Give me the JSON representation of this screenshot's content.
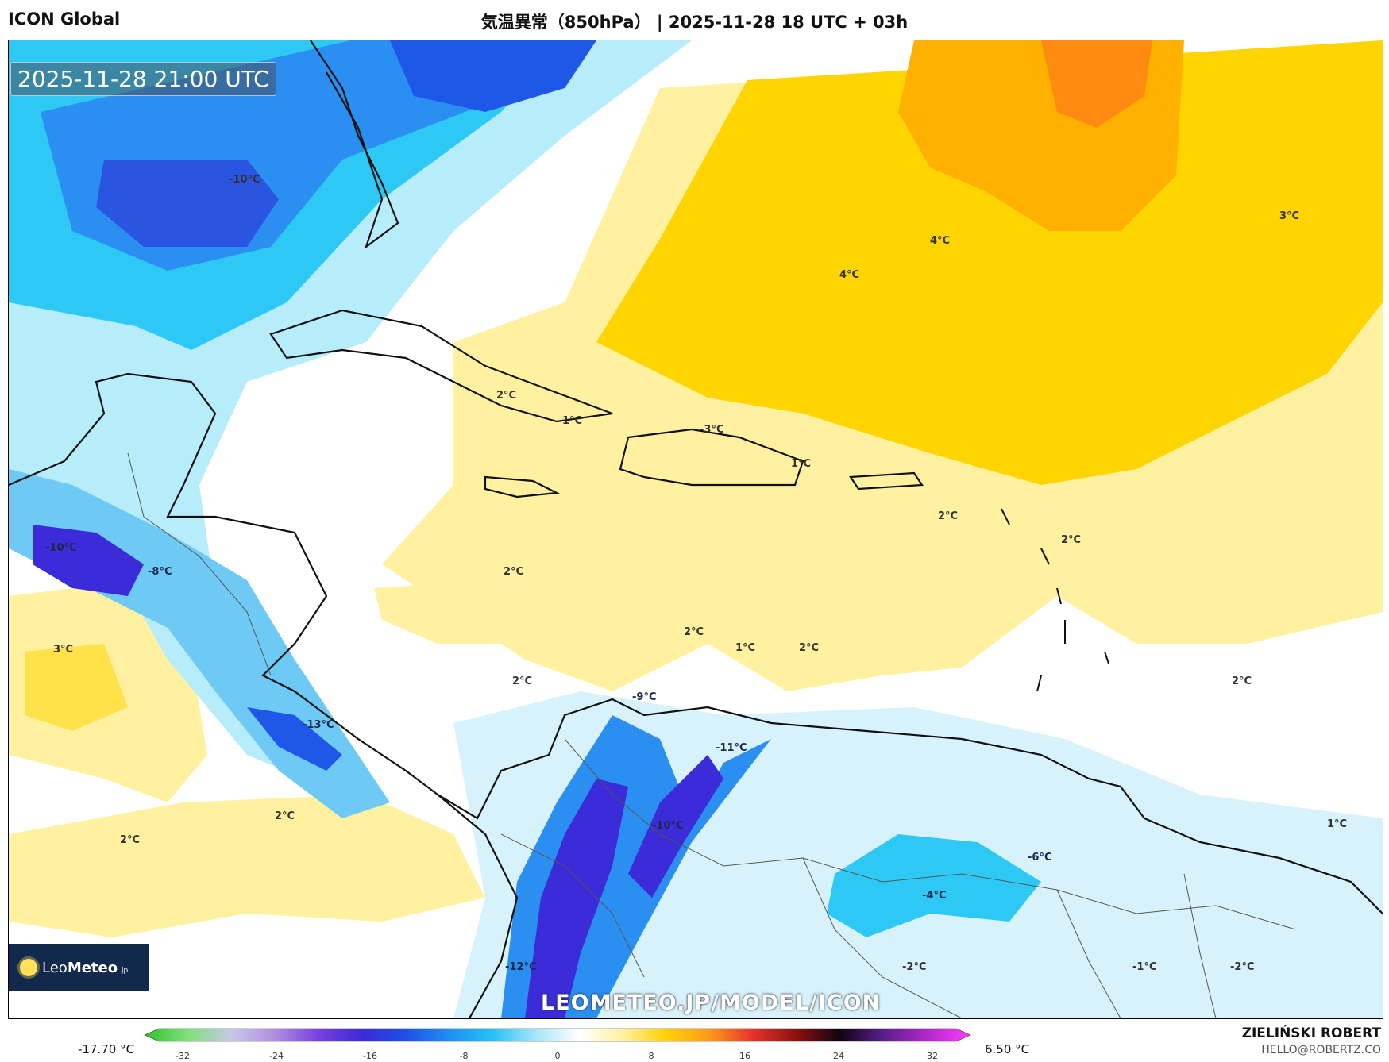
{
  "header": {
    "model": "ICON Global",
    "title": "気温異常（850hPa） | 2025-11-28 18 UTC + 03h"
  },
  "map": {
    "valid_time": "2025-11-28 21:00 UTC",
    "watermark": "LEOMETEO.JP/MODEL/ICON",
    "logo": {
      "text_light": "Leo",
      "text_bold": "Meteo",
      "text_small": ".jp"
    },
    "contour_labels": [
      "-10°C",
      "4°C",
      "4°C",
      "3°C",
      "2°C",
      "1°C",
      "-3°C",
      "1°C",
      "2°C",
      "2°C",
      "-10°C",
      "-8°C",
      "2°C",
      "3°C",
      "2°C",
      "1°C",
      "2°C",
      "2°C",
      "2°C",
      "-9°C",
      "-13°C",
      "-11°C",
      "-10°C",
      "2°C",
      "2°C",
      "-6°C",
      "-4°C",
      "1°C",
      "-12°C",
      "-2°C",
      "-1°C",
      "-2°C"
    ]
  },
  "legend": {
    "min_label": "-17.70 °C",
    "max_label": "6.50 °C",
    "ticks": [
      "-32",
      "-24",
      "-16",
      "-8",
      "0",
      "8",
      "16",
      "24",
      "32"
    ],
    "colors": [
      "#31c12e",
      "#7fe07a",
      "#c8c8e8",
      "#b08ee0",
      "#7a3fe0",
      "#3b2bd8",
      "#1f4fe8",
      "#1f8ef5",
      "#22c3f5",
      "#a5e6f8",
      "#ffffff",
      "#fff1a0",
      "#ffd200",
      "#ff9a1a",
      "#e6322a",
      "#8c1010",
      "#100410",
      "#5a1e8c",
      "#b028c8",
      "#ff3cff"
    ]
  },
  "footer": {
    "author": "ZIELIŃSKI ROBERT",
    "contact": "HELLO@ROBERTZ.CO"
  }
}
